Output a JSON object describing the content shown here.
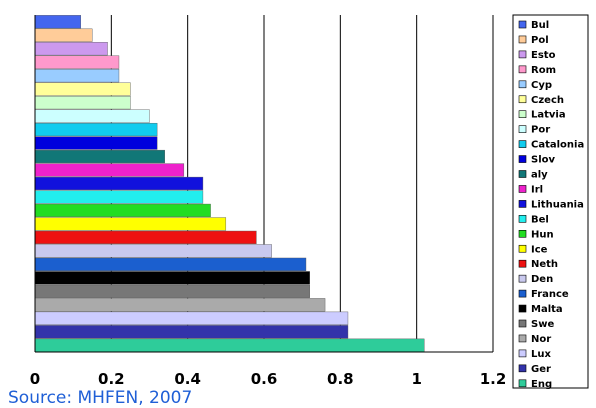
{
  "title": "",
  "source": "Source: MHFEN, 2007",
  "chart_data": {
    "type": "bar",
    "orientation": "horizontal",
    "title": "",
    "xlabel": "",
    "ylabel": "",
    "xlim": [
      0,
      1.2
    ],
    "x_ticks": [
      "0",
      "0.2",
      "0.4",
      "0.6",
      "0.8",
      "1",
      "1.2"
    ],
    "grid": "vertical major gridlines",
    "legend_position": "right",
    "categories": [
      "Eng",
      "Ger",
      "Lux",
      "Nor",
      "Swe",
      "Malta",
      "France",
      "Den",
      "Neth",
      "Ice",
      "Hun",
      "Bel",
      "Lithuania",
      "Irl",
      "aly",
      "Slov",
      "Catalonia",
      "Por",
      "Latvia",
      "Czech",
      "Cyp",
      "Rom",
      "Esto",
      "Pol",
      "Bul"
    ],
    "values": [
      1.02,
      0.82,
      0.82,
      0.76,
      0.72,
      0.72,
      0.71,
      0.62,
      0.58,
      0.5,
      0.46,
      0.44,
      0.44,
      0.39,
      0.34,
      0.32,
      0.32,
      0.3,
      0.25,
      0.25,
      0.22,
      0.22,
      0.19,
      0.15,
      0.12
    ],
    "colors": [
      "#2ecc9a",
      "#3333aa",
      "#ccccff",
      "#aaaaaa",
      "#777777",
      "#000000",
      "#1b5fcf",
      "#c9c9ee",
      "#ee1111",
      "#ffff00",
      "#22dd22",
      "#22eeee",
      "#1111dd",
      "#ee22cc",
      "#117777",
      "#0000dd",
      "#11ccee",
      "#ccffff",
      "#ccffcc",
      "#ffff99",
      "#99ccff",
      "#ff99cc",
      "#cc99ee",
      "#ffcc99",
      "#4466ee"
    ],
    "legend_order_top_to_bottom": [
      "Bul",
      "Pol",
      "Esto",
      "Rom",
      "Cyp",
      "Czech",
      "Latvia",
      "Por",
      "Catalonia",
      "Slov",
      "aly",
      "Irl",
      "Lithuania",
      "Bel",
      "Hun",
      "Ice",
      "Neth",
      "Den",
      "France",
      "Malta",
      "Swe",
      "Nor",
      "Lux",
      "Ger",
      "Eng"
    ]
  }
}
